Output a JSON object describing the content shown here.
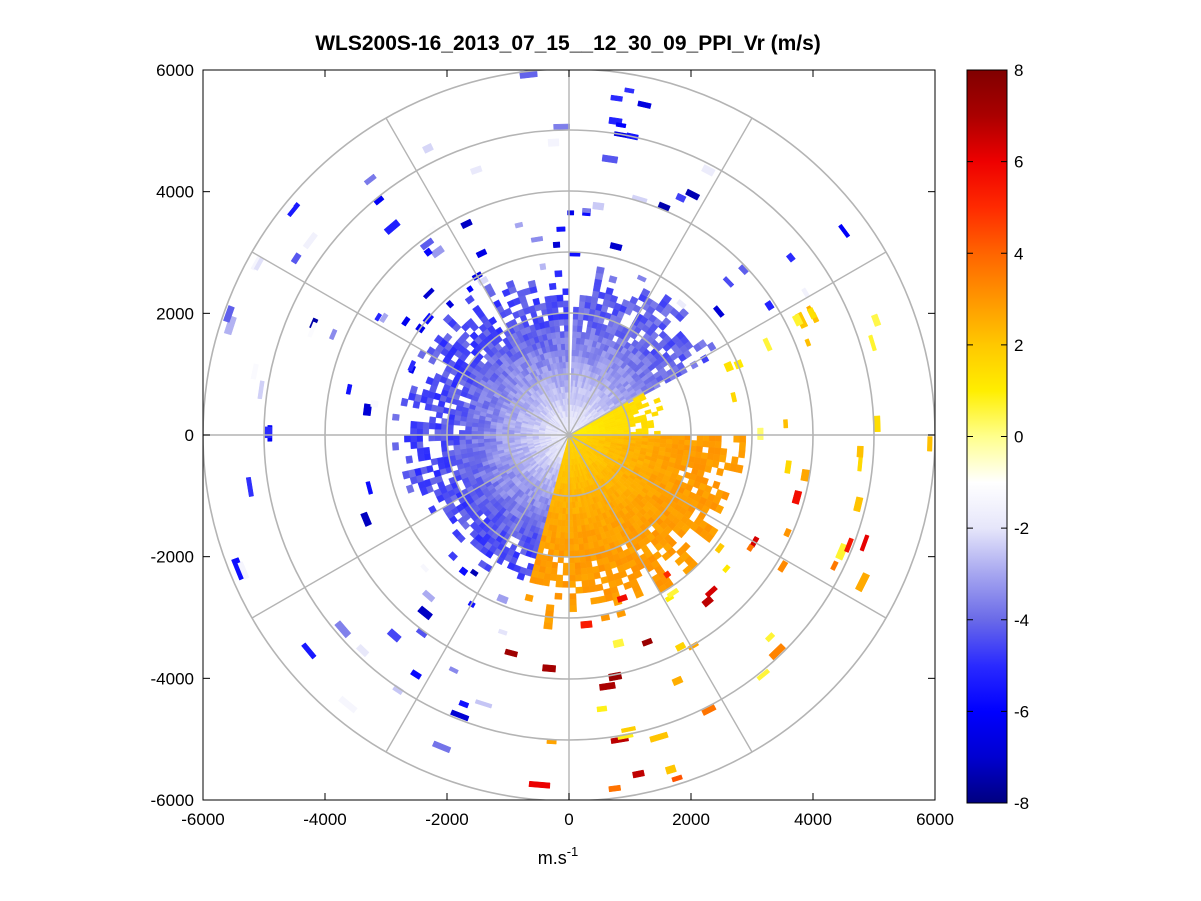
{
  "chart_data": {
    "type": "heatmap",
    "subtype": "polar-ppi",
    "title": "WLS200S-16_2013_07_15__12_30_09_PPI_Vr (m/s)",
    "xlabel": {
      "base": "m.s",
      "sup": "-1"
    },
    "ylabel": "",
    "xlim": [
      -6000,
      6000
    ],
    "ylim": [
      -6000,
      6000
    ],
    "xticks": [
      "-6000",
      "-4000",
      "-2000",
      "0",
      "2000",
      "4000",
      "6000"
    ],
    "yticks": [
      "6000",
      "4000",
      "2000",
      "0",
      "-2000",
      "-4000",
      "-6000"
    ],
    "polar_grid": {
      "rings_m": [
        1000,
        2000,
        3000,
        4000,
        5000,
        6000
      ],
      "spokes_deg": [
        0,
        30,
        60,
        90,
        120,
        150,
        180,
        210,
        240,
        270,
        300,
        330
      ]
    },
    "colorbar": {
      "range": [
        -8,
        8
      ],
      "ticks": [
        "8",
        "6",
        "4",
        "2",
        "0",
        "-2",
        "-4",
        "-6",
        "-8"
      ],
      "colormap": [
        "#000080",
        "#0000d0",
        "#0000ff",
        "#2a2aff",
        "#6a6ae8",
        "#a6a6f0",
        "#e6e6fa",
        "#ffffff",
        "#ffff8c",
        "#ffee00",
        "#ffc800",
        "#ff9600",
        "#ff6400",
        "#ff2a00",
        "#ee0000",
        "#aa0000",
        "#800000"
      ]
    },
    "field": {
      "description_free": "Radial velocity sectors by azimuth (deg clockwise from north) and range (m)",
      "sectors": [
        {
          "az_from": 195,
          "az_to": 360,
          "range_max": 2700,
          "vr_min": -4.8,
          "vr_max": -0.2
        },
        {
          "az_from": 2,
          "az_to": 60,
          "range_max": 2700,
          "vr_min": -4.5,
          "vr_max": -0.3
        },
        {
          "az_from": 60,
          "az_to": 90,
          "range_max": 1500,
          "vr_min": 0.5,
          "vr_max": 1.5
        },
        {
          "az_from": 90,
          "az_to": 195,
          "range_max": 3000,
          "vr_min": 0.8,
          "vr_max": 3.0
        }
      ]
    }
  }
}
